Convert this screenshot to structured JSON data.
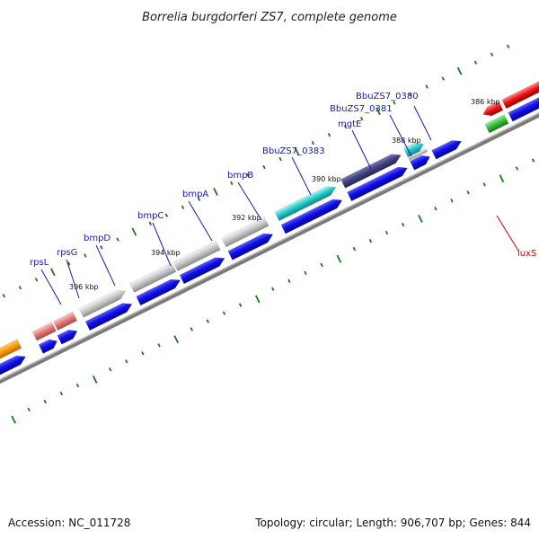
{
  "title": "Borrelia burgdorferi ZS7, complete genome",
  "footer": {
    "accession": "Accession: NC_011728",
    "summary": "Topology: circular; Length: 906,707 bp; Genes: 844"
  },
  "ticks": [
    {
      "label": "386 kbp"
    },
    {
      "label": "388 kbp"
    },
    {
      "label": "390 kbp"
    },
    {
      "label": "392 kbp"
    },
    {
      "label": "394 kbp"
    },
    {
      "label": "396 kbp"
    }
  ],
  "genes": [
    {
      "name": "BbuZS7_0380"
    },
    {
      "name": "BbuZS7_0381"
    },
    {
      "name": "mgtE"
    },
    {
      "name": "BbuZS7_0383"
    },
    {
      "name": "bmpB"
    },
    {
      "name": "bmpA"
    },
    {
      "name": "bmpC"
    },
    {
      "name": "bmpD"
    },
    {
      "name": "rpsG"
    },
    {
      "name": "rpsL"
    },
    {
      "name": "luxS"
    }
  ],
  "colors": {
    "backbone": "#7a7a7a",
    "cds_blue": "#1010e0",
    "gray_gene": "#b0b0b0",
    "cyan_gene": "#20c8c8",
    "navy_gene": "#404080",
    "pink_gene": "#e07878",
    "orange_gene": "#ff9900",
    "red_gene": "#ee1111",
    "green_gene": "#33bb33",
    "tick_green": "#1a7a1a",
    "label_blue": "#1a1aa8",
    "label_red": "#cc0000"
  }
}
